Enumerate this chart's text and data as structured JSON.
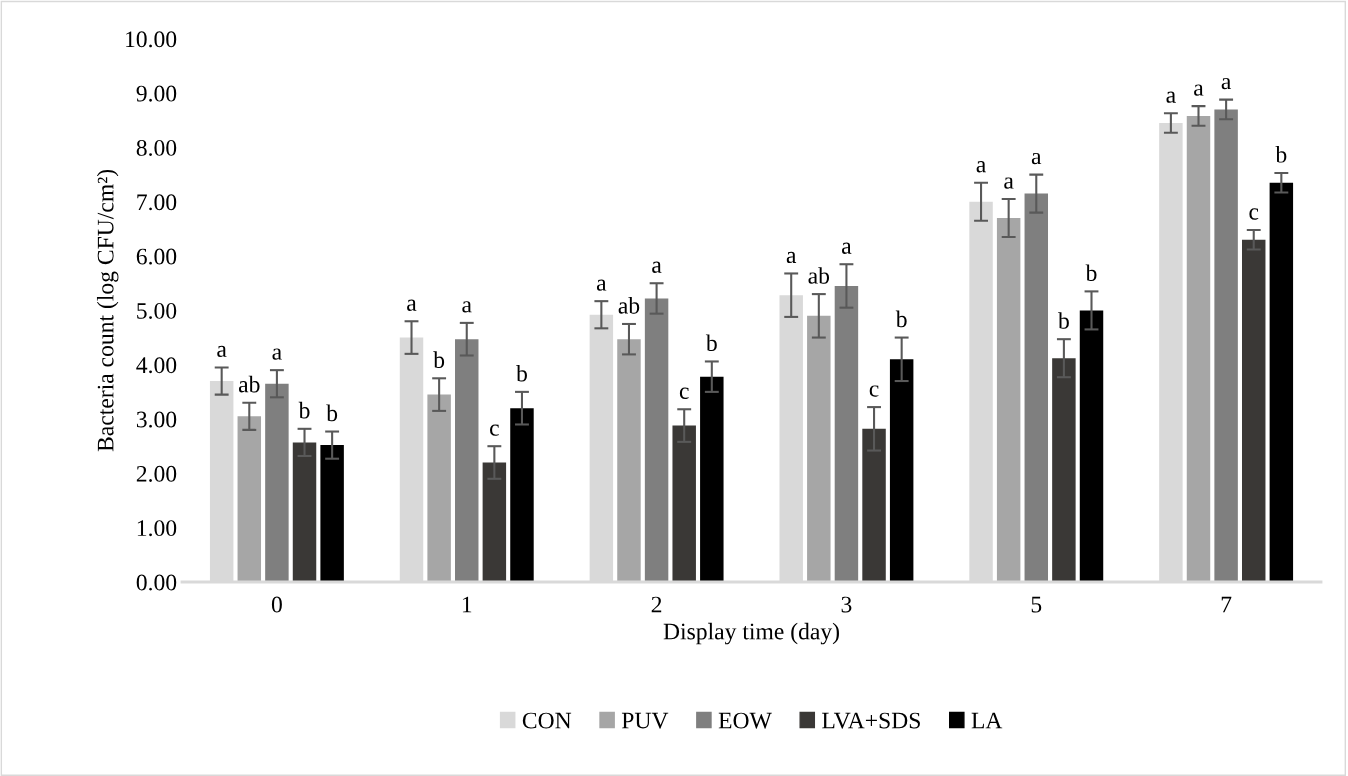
{
  "chart_data": {
    "type": "bar",
    "xlabel": "Display time (day)",
    "ylabel": "Bacteria count (log CFU/cm²)",
    "categories": [
      "0",
      "1",
      "2",
      "3",
      "5",
      "7"
    ],
    "series": [
      {
        "name": "CON",
        "color": "#d9d9d9",
        "values": [
          3.7,
          4.5,
          4.92,
          5.28,
          7.0,
          8.45
        ],
        "errors": [
          0.25,
          0.3,
          0.25,
          0.4,
          0.35,
          0.18
        ],
        "value_labels": [
          "a",
          "a",
          "a",
          "a",
          "a",
          "a"
        ]
      },
      {
        "name": "PUV",
        "color": "#a6a6a6",
        "values": [
          3.05,
          3.45,
          4.47,
          4.9,
          6.7,
          8.58
        ],
        "errors": [
          0.25,
          0.3,
          0.28,
          0.4,
          0.35,
          0.18
        ],
        "value_labels": [
          "ab",
          "b",
          "ab",
          "ab",
          "a",
          "a"
        ]
      },
      {
        "name": "EOW",
        "color": "#7f7f7f",
        "values": [
          3.65,
          4.47,
          5.22,
          5.45,
          7.15,
          8.7
        ],
        "errors": [
          0.25,
          0.3,
          0.28,
          0.4,
          0.35,
          0.18
        ],
        "value_labels": [
          "a",
          "a",
          "a",
          "a",
          "a",
          "a"
        ]
      },
      {
        "name": "LVA+SDS",
        "color": "#3a3836",
        "values": [
          2.57,
          2.2,
          2.88,
          2.82,
          4.12,
          6.3
        ],
        "errors": [
          0.25,
          0.3,
          0.3,
          0.4,
          0.35,
          0.18
        ],
        "value_labels": [
          "b",
          "c",
          "c",
          "c",
          "b",
          "c"
        ]
      },
      {
        "name": "LA",
        "color": "#000000",
        "values": [
          2.52,
          3.2,
          3.78,
          4.1,
          5.0,
          7.35
        ],
        "errors": [
          0.25,
          0.3,
          0.28,
          0.4,
          0.35,
          0.18
        ],
        "value_labels": [
          "b",
          "b",
          "b",
          "b",
          "b",
          "b"
        ]
      }
    ],
    "ylim": [
      0,
      10
    ],
    "yticks": [
      {
        "value": 0,
        "label": "0.00"
      },
      {
        "value": 1,
        "label": "1.00"
      },
      {
        "value": 2,
        "label": "2.00"
      },
      {
        "value": 3,
        "label": "3.00"
      },
      {
        "value": 4,
        "label": "4.00"
      },
      {
        "value": 5,
        "label": "5.00"
      },
      {
        "value": 6,
        "label": "6.00"
      },
      {
        "value": 7,
        "label": "7.00"
      },
      {
        "value": 8,
        "label": "8.00"
      },
      {
        "value": 9,
        "label": "9.00"
      },
      {
        "value": 10,
        "label": "10.00"
      }
    ],
    "grid": false,
    "legend": "bottom"
  }
}
